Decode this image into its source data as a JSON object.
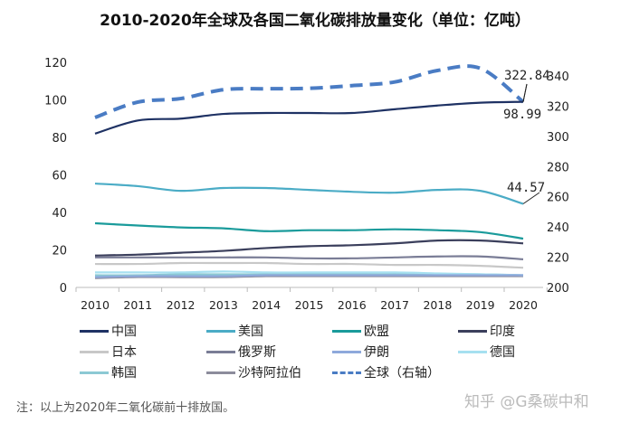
{
  "chart_data": {
    "type": "line",
    "title": "2010-2020年全球及各国二氧化碳排放量变化（单位：亿吨）",
    "categories": [
      "2010",
      "2011",
      "2012",
      "2013",
      "2014",
      "2015",
      "2016",
      "2017",
      "2018",
      "2019",
      "2020"
    ],
    "ylim": [
      0,
      120
    ],
    "yticks": [
      "0",
      "20",
      "40",
      "60",
      "80",
      "100",
      "120"
    ],
    "y2lim": [
      200,
      340
    ],
    "y2ticks": [
      "200",
      "220",
      "240",
      "260",
      "280",
      "300",
      "320",
      "340"
    ],
    "grid": false,
    "legend": "bottom",
    "series": [
      {
        "name": "中国",
        "color": "#1f3264",
        "axis": "left",
        "values": [
          82,
          89,
          90,
          92.5,
          93,
          93,
          93,
          95,
          97,
          98.5,
          98.99
        ],
        "label": "98.99"
      },
      {
        "name": "美国",
        "color": "#4bacc6",
        "axis": "left",
        "values": [
          55.4,
          54,
          51.5,
          53,
          53,
          52,
          51,
          50.5,
          52,
          51.5,
          44.57
        ],
        "label": "44.57"
      },
      {
        "name": "欧盟",
        "color": "#1a9b9b",
        "axis": "left",
        "values": [
          34.2,
          33,
          32,
          31.5,
          30,
          30.5,
          30.5,
          31,
          30.5,
          29.5,
          26
        ]
      },
      {
        "name": "印度",
        "color": "#3b3f5c",
        "axis": "left",
        "values": [
          17,
          17.5,
          18.5,
          19.5,
          21,
          22,
          22.5,
          23.5,
          25,
          25,
          23.5
        ]
      },
      {
        "name": "日本",
        "color": "#c8c8c8",
        "axis": "left",
        "values": [
          12.5,
          12.5,
          13,
          13,
          13,
          12.5,
          12.5,
          12,
          12,
          11.5,
          10.5
        ]
      },
      {
        "name": "俄罗斯",
        "color": "#7a7d96",
        "axis": "left",
        "values": [
          16,
          16,
          16,
          16,
          16,
          15.5,
          15.5,
          16,
          16.5,
          16.5,
          15
        ]
      },
      {
        "name": "伊朗",
        "color": "#8ea9db",
        "axis": "left",
        "values": [
          5.5,
          6,
          6,
          6,
          6.5,
          6.5,
          6.5,
          6.5,
          6.5,
          6.5,
          6.5
        ]
      },
      {
        "name": "德国",
        "color": "#a6e0f0",
        "axis": "left",
        "values": [
          8,
          8,
          8,
          8.5,
          8,
          8,
          8,
          8,
          7.5,
          7,
          6.5
        ]
      },
      {
        "name": "韩国",
        "color": "#8cc9d4",
        "axis": "left",
        "values": [
          6.5,
          6.5,
          7,
          7,
          7,
          7,
          7,
          7,
          7,
          7,
          6.5
        ]
      },
      {
        "name": "沙特阿拉伯",
        "color": "#8c8c9c",
        "axis": "left",
        "values": [
          5,
          5.5,
          5.5,
          5.5,
          6,
          6,
          6,
          6,
          6,
          6,
          6
        ]
      },
      {
        "name": "全球（右轴）",
        "color": "#4a7cc4",
        "axis": "right",
        "dashed": true,
        "values": [
          312.5,
          322.7,
          325,
          330.9,
          331.5,
          331.8,
          333.6,
          336,
          343.6,
          345,
          322.84
        ],
        "label": "322.84"
      }
    ]
  },
  "note": "注：以上为2020年二氧化碳前十排放国。",
  "watermark": "知乎 @G桑碳中和"
}
